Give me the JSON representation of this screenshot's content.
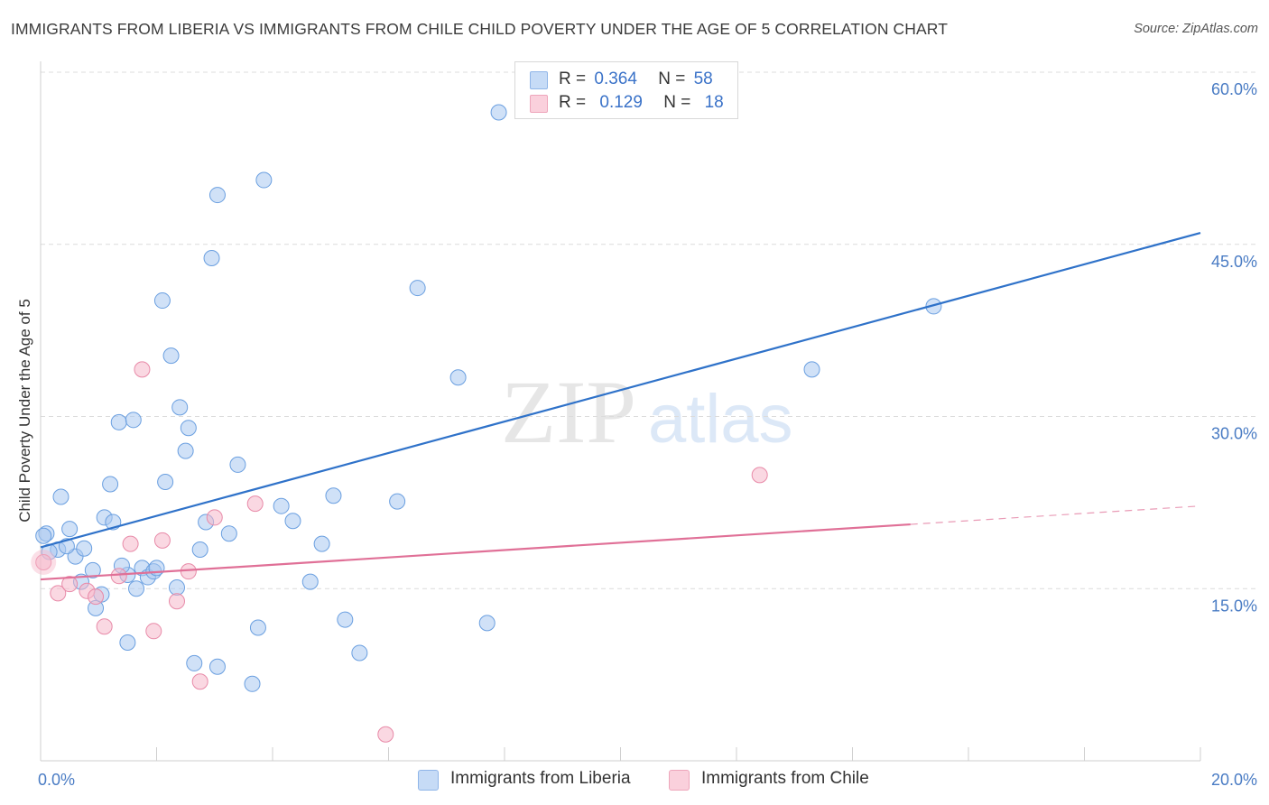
{
  "header": {
    "title": "IMMIGRANTS FROM LIBERIA VS IMMIGRANTS FROM CHILE CHILD POVERTY UNDER THE AGE OF 5 CORRELATION CHART",
    "source": "Source: ZipAtlas.com"
  },
  "watermark": {
    "zip": "ZIP",
    "atlas": "atlas"
  },
  "legend": {
    "rows": [
      {
        "r_label": "R =",
        "r_value": "0.364",
        "n_label": "N =",
        "n_value": "58",
        "color": "#aac8f0"
      },
      {
        "r_label": "R =",
        "r_value": "0.129",
        "n_label": "N =",
        "n_value": "18",
        "color": "#f6b8ca"
      }
    ]
  },
  "bottom_legend": {
    "items": [
      {
        "label": "Immigrants from Liberia",
        "color": "#aac8f0"
      },
      {
        "label": "Immigrants from Chile",
        "color": "#f6b8ca"
      }
    ]
  },
  "chart_data": {
    "type": "scatter",
    "title": "IMMIGRANTS FROM LIBERIA VS IMMIGRANTS FROM CHILE CHILD POVERTY UNDER THE AGE OF 5 CORRELATION CHART",
    "xlabel": "",
    "ylabel": "Child Poverty Under the Age of 5",
    "xlim": [
      0,
      20
    ],
    "ylim": [
      0,
      60
    ],
    "x_tick_labels": [
      {
        "value": 0,
        "label": "0.0%"
      },
      {
        "value": 20,
        "label": "20.0%"
      }
    ],
    "y_tick_labels": [
      {
        "value": 15,
        "label": "15.0%"
      },
      {
        "value": 30,
        "label": "30.0%"
      },
      {
        "value": 45,
        "label": "45.0%"
      },
      {
        "value": 60,
        "label": "60.0%"
      }
    ],
    "grid": true,
    "series": [
      {
        "name": "Immigrants from Liberia",
        "color": "#6a9fe0",
        "fill": "#aac8f0",
        "trend": {
          "x0": 0,
          "y0": 18.6,
          "x1": 20,
          "y1": 46.0,
          "dashed_from": null
        },
        "points": [
          [
            0.1,
            19.8
          ],
          [
            0.3,
            18.4
          ],
          [
            0.35,
            23.0
          ],
          [
            0.5,
            20.2
          ],
          [
            0.6,
            17.8
          ],
          [
            0.75,
            18.5
          ],
          [
            0.7,
            15.6
          ],
          [
            0.9,
            16.6
          ],
          [
            0.95,
            13.3
          ],
          [
            1.05,
            14.5
          ],
          [
            1.1,
            21.2
          ],
          [
            1.2,
            24.1
          ],
          [
            1.25,
            20.8
          ],
          [
            1.35,
            29.5
          ],
          [
            1.5,
            16.2
          ],
          [
            1.5,
            10.3
          ],
          [
            1.6,
            29.7
          ],
          [
            1.65,
            15.0
          ],
          [
            1.75,
            16.8
          ],
          [
            1.85,
            16.0
          ],
          [
            1.95,
            16.5
          ],
          [
            2.1,
            40.1
          ],
          [
            2.15,
            24.3
          ],
          [
            2.25,
            35.3
          ],
          [
            2.35,
            15.1
          ],
          [
            2.4,
            30.8
          ],
          [
            2.5,
            27.0
          ],
          [
            2.55,
            29.0
          ],
          [
            2.65,
            8.5
          ],
          [
            2.75,
            18.4
          ],
          [
            2.85,
            20.8
          ],
          [
            2.95,
            43.8
          ],
          [
            3.05,
            49.3
          ],
          [
            3.05,
            8.2
          ],
          [
            3.25,
            19.8
          ],
          [
            3.4,
            25.8
          ],
          [
            3.65,
            6.7
          ],
          [
            3.75,
            11.6
          ],
          [
            3.85,
            50.6
          ],
          [
            4.15,
            22.2
          ],
          [
            4.35,
            20.9
          ],
          [
            4.65,
            15.6
          ],
          [
            4.85,
            18.9
          ],
          [
            5.05,
            23.1
          ],
          [
            5.25,
            12.3
          ],
          [
            5.5,
            9.4
          ],
          [
            6.15,
            22.6
          ],
          [
            6.5,
            41.2
          ],
          [
            7.2,
            33.4
          ],
          [
            7.7,
            12.0
          ],
          [
            7.9,
            56.5
          ],
          [
            13.3,
            34.1
          ],
          [
            15.4,
            39.6
          ],
          [
            0.05,
            19.6
          ],
          [
            0.15,
            18.2
          ],
          [
            0.45,
            18.7
          ],
          [
            1.4,
            17.0
          ],
          [
            2.0,
            16.8
          ]
        ]
      },
      {
        "name": "Immigrants from Chile",
        "color": "#e88aa8",
        "fill": "#f6b8ca",
        "trend": {
          "x0": 0,
          "y0": 15.8,
          "x1": 20,
          "y1": 22.2,
          "dashed_from": 15.0
        },
        "points": [
          [
            0.05,
            17.3
          ],
          [
            0.3,
            14.6
          ],
          [
            0.5,
            15.4
          ],
          [
            0.8,
            14.8
          ],
          [
            0.95,
            14.3
          ],
          [
            1.1,
            11.7
          ],
          [
            1.35,
            16.1
          ],
          [
            1.55,
            18.9
          ],
          [
            1.75,
            34.1
          ],
          [
            1.95,
            11.3
          ],
          [
            2.1,
            19.2
          ],
          [
            2.35,
            13.9
          ],
          [
            2.55,
            16.5
          ],
          [
            2.75,
            6.9
          ],
          [
            3.0,
            21.2
          ],
          [
            3.7,
            22.4
          ],
          [
            5.95,
            2.3
          ],
          [
            12.4,
            24.9
          ]
        ]
      }
    ]
  }
}
